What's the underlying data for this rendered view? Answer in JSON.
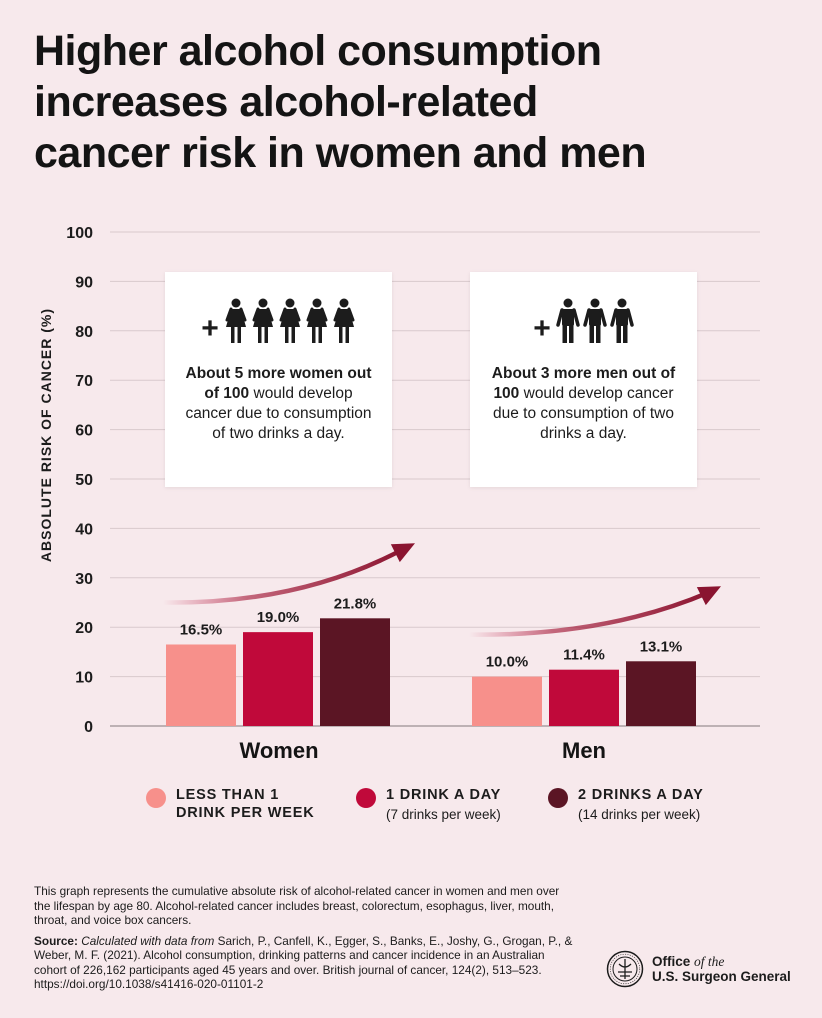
{
  "title": {
    "line1": "Higher alcohol consumption",
    "line2": "increases alcohol-related",
    "line3": "cancer risk in women and men"
  },
  "chart_data": {
    "type": "bar",
    "ylabel": "ABSOLUTE RISK OF CANCER (%)",
    "ylim": [
      0,
      100
    ],
    "yticks": [
      0,
      10,
      20,
      30,
      40,
      50,
      60,
      70,
      80,
      90,
      100
    ],
    "grid": true,
    "categories": [
      "Women",
      "Men"
    ],
    "series": [
      {
        "name": "LESS THAN 1 DRINK PER WEEK",
        "values": [
          16.5,
          10.0
        ],
        "labels": [
          "16.5%",
          "10.0%"
        ],
        "color": "#f7908b"
      },
      {
        "name": "1 DRINK A DAY",
        "values": [
          19.0,
          11.4
        ],
        "labels": [
          "19.0%",
          "11.4%"
        ],
        "color": "#c0093a"
      },
      {
        "name": "2 DRINKS A DAY",
        "values": [
          21.8,
          13.1
        ],
        "labels": [
          "21.8%",
          "13.1%"
        ],
        "color": "#5b1524"
      }
    ]
  },
  "callouts": {
    "women": {
      "bold": "About 5 more women out of 100",
      "rest": " would develop cancer due to consumption of two drinks a day.",
      "figures": 5
    },
    "men": {
      "bold": "About 3 more men out of 100",
      "rest": " would develop cancer due to consumption of two drinks a day.",
      "figures": 3
    }
  },
  "legend": {
    "item1": {
      "line1": "LESS THAN 1",
      "line2": "DRINK PER WEEK",
      "color": "#f7908b"
    },
    "item2": {
      "label": "1 DRINK A DAY",
      "sub": "(7 drinks per week)",
      "color": "#c0093a"
    },
    "item3": {
      "label": "2 DRINKS A DAY",
      "sub": "(14 drinks per week)",
      "color": "#5b1524"
    }
  },
  "footer": {
    "note": "This graph represents the cumulative absolute risk of alcohol-related cancer in women and men over the lifespan by age 80. Alcohol-related cancer includes breast, colorectum, esophagus, liver, mouth, throat, and voice box cancers.",
    "source_label": "Source:",
    "source_italic": "Calculated with data from",
    "source_text": "Sarich, P., Canfell, K., Egger, S., Banks, E., Joshy, G., Grogan, P., & Weber, M. F. (2021). Alcohol consumption, drinking patterns and cancer incidence in an Australian cohort of 226,162 participants aged 45 years and over. British journal of cancer, 124(2), 513–523. https://doi.org/10.1038/s41416-020-01101-2"
  },
  "branding": {
    "office_line1": "Office",
    "office_of_the": "of the",
    "office_line2": "U.S. Surgeon General",
    "icon": "seal-icon"
  },
  "colors": {
    "background": "#f7e9ec",
    "arrow": "#8a1430"
  }
}
